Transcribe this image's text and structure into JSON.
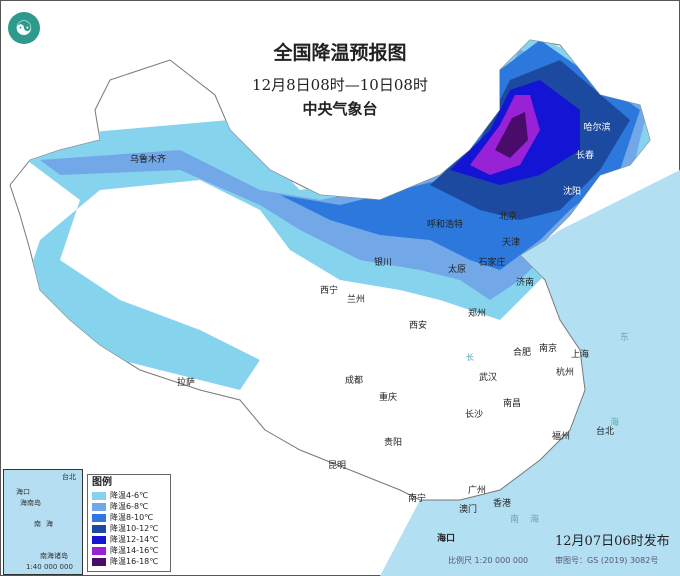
{
  "header": {
    "title": "全国降温预报图",
    "period": "12月8日08时—10日08时",
    "issuer": "中央气象台"
  },
  "logo": {
    "icon": "cma-logo-icon"
  },
  "map": {
    "cities": [
      "乌鲁木齐",
      "哈尔滨",
      "长春",
      "沈阳",
      "北京",
      "天津",
      "呼和浩特",
      "石家庄",
      "太原",
      "济南",
      "银川",
      "西宁",
      "兰州",
      "郑州",
      "西安",
      "合肥",
      "南京",
      "上海",
      "杭州",
      "武汉",
      "成都",
      "拉萨",
      "重庆",
      "长沙",
      "南昌",
      "福州",
      "台北",
      "贵阳",
      "昆明",
      "南宁",
      "广州",
      "香港",
      "澳门",
      "海口"
    ],
    "sea_labels": [
      "东",
      "海",
      "南",
      "海",
      "长"
    ]
  },
  "inset": {
    "labels": [
      "海口",
      "海南岛",
      "台北",
      "南",
      "海",
      "南海诸岛"
    ],
    "scale": "1:40 000 000"
  },
  "legend": {
    "title": "图例",
    "items": [
      {
        "label": "降温4-6℃",
        "color": "#86d3ee"
      },
      {
        "label": "降温6-8℃",
        "color": "#72a8e8"
      },
      {
        "label": "降温8-10℃",
        "color": "#2c78dc"
      },
      {
        "label": "降温10-12℃",
        "color": "#1c4aa0"
      },
      {
        "label": "降温12-14℃",
        "color": "#1414d4"
      },
      {
        "label": "降温14-16℃",
        "color": "#9a22d6"
      },
      {
        "label": "降温16-18℃",
        "color": "#4a0c6a"
      }
    ]
  },
  "footer": {
    "issued": "12月07日06时发布",
    "scale": "比例尺 1:20 000 000",
    "review": "审图号：GS (2019) 3082号"
  }
}
